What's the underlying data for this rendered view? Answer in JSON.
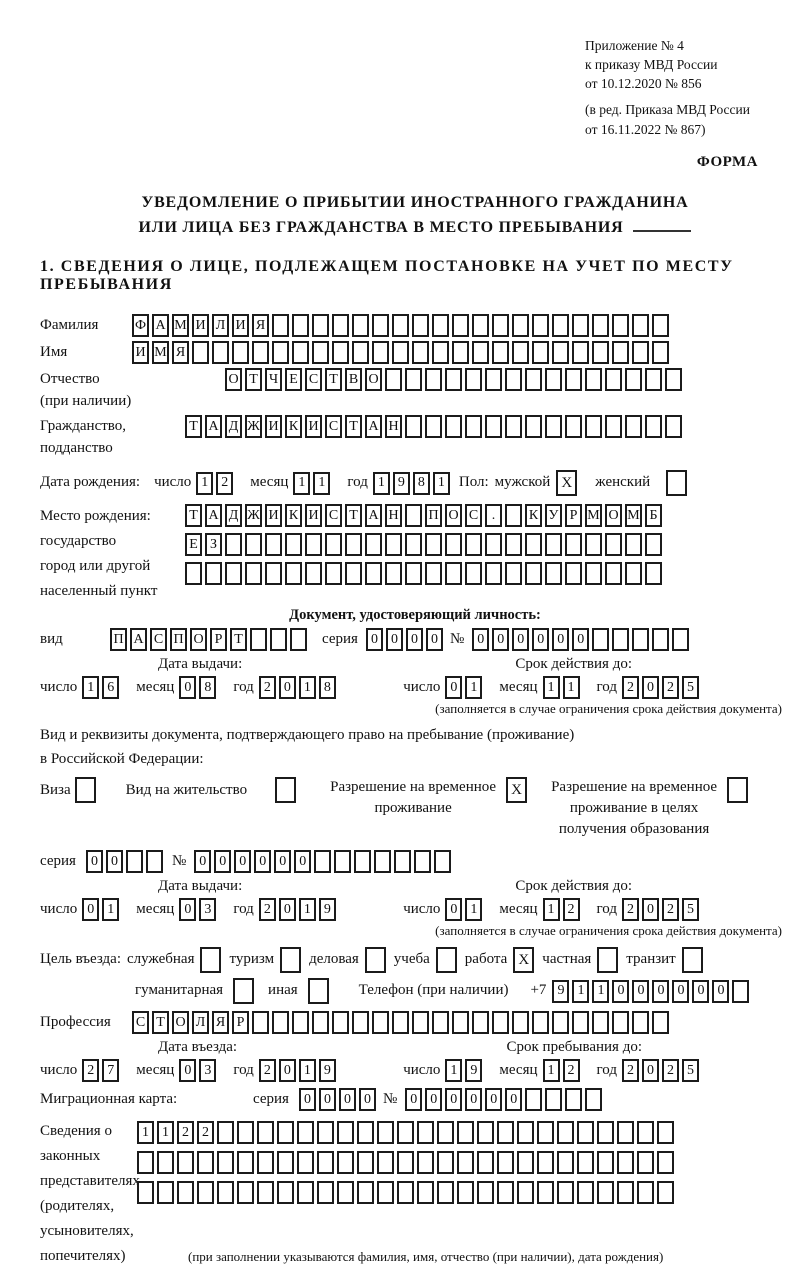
{
  "mark": "X",
  "annex": {
    "line1": "Приложение № 4",
    "line2": "к приказу МВД России",
    "line3": "от 10.12.2020 № 856",
    "line4": "(в ред. Приказа МВД России",
    "line5": "от 16.11.2022 № 867)"
  },
  "forma": "ФОРМА",
  "title": {
    "line1": "УВЕДОМЛЕНИЕ О ПРИБЫТИИ ИНОСТРАННОГО ГРАЖДАНИНА",
    "line2": "ИЛИ ЛИЦА БЕЗ ГРАЖДАНСТВА В МЕСТО ПРЕБЫВАНИЯ"
  },
  "section1_heading": "1. СВЕДЕНИЯ О ЛИЦЕ, ПОДЛЕЖАЩЕМ ПОСТАНОВКЕ НА УЧЕТ ПО МЕСТУ ПРЕБЫВАНИЯ",
  "date_labels": {
    "day": "число",
    "month": "месяц",
    "year": "год"
  },
  "person": {
    "surname": {
      "label": "Фамилия",
      "value": "ФАМИЛИЯ",
      "count": 27
    },
    "firstname": {
      "label": "Имя",
      "value": "ИМЯ",
      "count": 27
    },
    "patronymic": {
      "label1": "Отчество",
      "label2": "(при наличии)",
      "value": "ОТЧЕСТВО",
      "count": 23
    },
    "citizenship": {
      "label1": "Гражданство,",
      "label2": "подданство",
      "value": "ТАДЖИКИСТАН",
      "count": 25
    },
    "birth_label": "Дата рождения:",
    "birth": {
      "day": {
        "value": "12",
        "count": 2
      },
      "month": {
        "value": "11",
        "count": 2
      },
      "year": {
        "value": "1981",
        "count": 4
      }
    },
    "sex": {
      "label": "Пол:",
      "male": "мужской",
      "male_checked": true,
      "female": "женский",
      "female_checked": false
    },
    "birthplace": {
      "label1": "Место рождения:",
      "label2": "государство",
      "label3": "город или другой",
      "label4": "населенный пункт",
      "row1": {
        "value": "ТАДЖИКИСТАН ПОС. КУРМОМБ",
        "count": 24
      },
      "row2": {
        "value": "ЕЗ",
        "count": 24
      },
      "row3": {
        "value": "",
        "count": 24
      }
    }
  },
  "identity_doc": {
    "heading": "Документ, удостоверяющий личность:",
    "kind_label": "вид",
    "kind": {
      "value": "ПАСПОРТ",
      "count": 10
    },
    "series_label": "серия",
    "series": {
      "value": "0000",
      "count": 4
    },
    "number_label": "№",
    "number": {
      "value": "000000",
      "count": 11
    },
    "issued_label": "Дата выдачи:",
    "issued": {
      "day": {
        "value": "16",
        "count": 2
      },
      "month": {
        "value": "08",
        "count": 2
      },
      "year": {
        "value": "2018",
        "count": 4
      }
    },
    "valid_label": "Срок действия до:",
    "valid": {
      "day": {
        "value": "01",
        "count": 2
      },
      "month": {
        "value": "11",
        "count": 2
      },
      "year": {
        "value": "2025",
        "count": 4
      }
    },
    "note": "(заполняется в случае ограничения срока действия документа)"
  },
  "residence_doc": {
    "intro1": "Вид и реквизиты документа, подтверждающего право на пребывание (проживание)",
    "intro2": "в Российской Федерации:",
    "visa": {
      "label": "Виза",
      "checked": false
    },
    "residence_permit": {
      "label": "Вид на жительство",
      "checked": false
    },
    "temp_permit": {
      "line1": "Разрешение на временное",
      "line2": "проживание",
      "checked": true
    },
    "edu_permit": {
      "line1": "Разрешение на временное",
      "line2": "проживание в целях",
      "line3": "получения образования",
      "checked": false
    },
    "series_label": "серия",
    "series": {
      "value": "00",
      "count": 4
    },
    "number_label": "№",
    "number": {
      "value": "000000",
      "count": 13
    },
    "issued_label": "Дата выдачи:",
    "issued": {
      "day": {
        "value": "01",
        "count": 2
      },
      "month": {
        "value": "03",
        "count": 2
      },
      "year": {
        "value": "2019",
        "count": 4
      }
    },
    "valid_label": "Срок действия до:",
    "valid": {
      "day": {
        "value": "01",
        "count": 2
      },
      "month": {
        "value": "12",
        "count": 2
      },
      "year": {
        "value": "2025",
        "count": 4
      }
    },
    "note": "(заполняется в случае ограничения срока действия документа)"
  },
  "purpose": {
    "label": "Цель въезда:",
    "options": [
      {
        "label": "служебная",
        "checked": false
      },
      {
        "label": "туризм",
        "checked": false
      },
      {
        "label": "деловая",
        "checked": false
      },
      {
        "label": "учеба",
        "checked": false
      },
      {
        "label": "работа",
        "checked": true
      },
      {
        "label": "частная",
        "checked": false
      },
      {
        "label": "транзит",
        "checked": false
      },
      {
        "label": "гуманитарная",
        "checked": false
      },
      {
        "label": "иная",
        "checked": false
      }
    ],
    "phone_label": "Телефон (при наличии)",
    "phone_prefix": "+7",
    "phone": {
      "value": "911000000",
      "count": 10
    }
  },
  "profession": {
    "label": "Профессия",
    "value": "СТОЛЯР",
    "count": 27
  },
  "entry": {
    "entry_label": "Дата въезда:",
    "entry_date": {
      "day": {
        "value": "27",
        "count": 2
      },
      "month": {
        "value": "03",
        "count": 2
      },
      "year": {
        "value": "2019",
        "count": 4
      }
    },
    "stay_label": "Срок пребывания до:",
    "stay_date": {
      "day": {
        "value": "19",
        "count": 2
      },
      "month": {
        "value": "12",
        "count": 2
      },
      "year": {
        "value": "2025",
        "count": 4
      }
    }
  },
  "migration_card": {
    "label": "Миграционная карта:",
    "series_label": "серия",
    "series": {
      "value": "0000",
      "count": 4
    },
    "number_label": "№",
    "number": {
      "value": "000000",
      "count": 10
    }
  },
  "representatives": {
    "label1": "Сведения о",
    "label2": "законных",
    "label3": "представителях",
    "label4": "(родителях,",
    "label5": "усыновителях,",
    "label6": "попечителях)",
    "row1": {
      "value": "1122",
      "count": 27
    },
    "row2": {
      "value": "",
      "count": 27
    },
    "row3": {
      "value": "",
      "count": 27
    },
    "note": "(при заполнении указываются фамилия, имя, отчество (при наличии), дата рождения)"
  }
}
